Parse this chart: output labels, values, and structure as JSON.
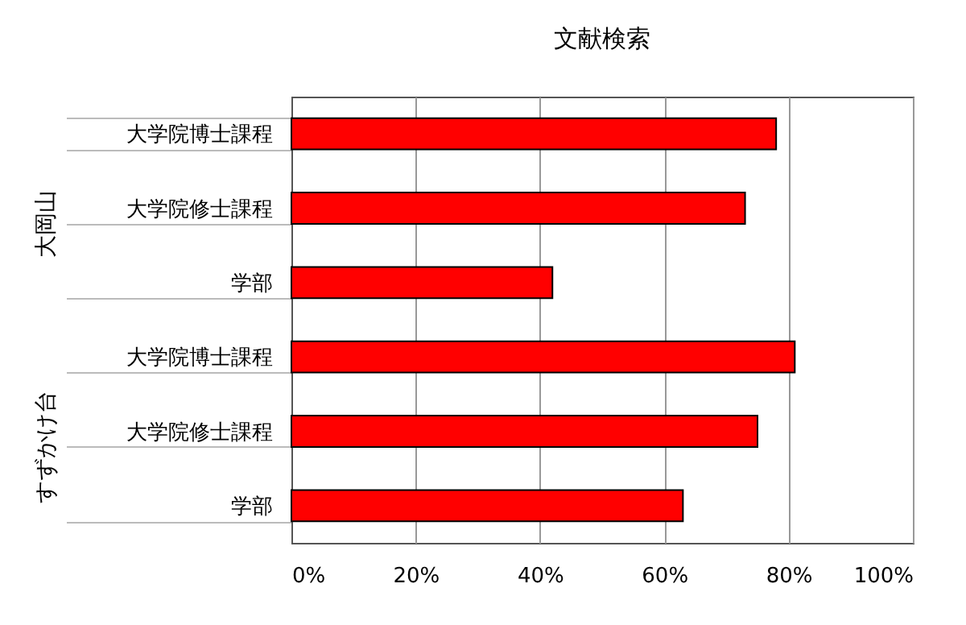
{
  "chart_data": {
    "type": "bar",
    "orientation": "horizontal",
    "title": "文献検索",
    "categories": [
      "大学院博士課程",
      "大学院修士課程",
      "学部",
      "大学院博士課程",
      "大学院修士課程",
      "学部"
    ],
    "values": [
      78,
      73,
      42,
      81,
      75,
      63
    ],
    "color": "#ff0000",
    "xlim": [
      0,
      100
    ],
    "xticks": [
      {
        "value": 0,
        "label": "0%"
      },
      {
        "value": 20,
        "label": "20%"
      },
      {
        "value": 40,
        "label": "40%"
      },
      {
        "value": 60,
        "label": "60%"
      },
      {
        "value": 80,
        "label": "80%"
      },
      {
        "value": 100,
        "label": "100%"
      }
    ],
    "annotations": [
      "大岡山",
      "すずかけ台"
    ],
    "grid": "x"
  }
}
